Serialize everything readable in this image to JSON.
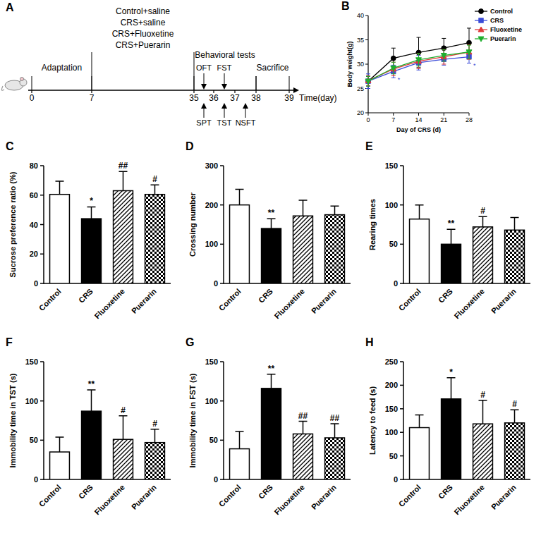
{
  "timeline": {
    "panel": "A",
    "phases": [
      {
        "lines": [
          "Adaptation"
        ],
        "from": 0,
        "to": 7
      },
      {
        "lines": [
          "Control+saline",
          "CRS+saline",
          "CRS+Fluoxetine",
          "CRS+Puerarin"
        ],
        "from": 7,
        "to": 35
      },
      {
        "lines": [
          "Behavioral tests"
        ],
        "from": 35,
        "to": 38
      },
      {
        "lines": [
          "Sacrifice"
        ],
        "from": 38,
        "to": 39
      }
    ],
    "days": [
      0,
      7,
      35,
      36,
      37,
      38,
      39
    ],
    "axis_label": "Time(day)",
    "tests": [
      {
        "label": "SPT",
        "side": "below"
      },
      {
        "label": "OFT",
        "side": "above"
      },
      {
        "label": "TST",
        "side": "below"
      },
      {
        "label": "FST",
        "side": "above"
      },
      {
        "label": "NSFT",
        "side": "below"
      }
    ]
  },
  "chart_data": [
    {
      "type": "line",
      "panel": "B",
      "xlabel": "Day of CRS (d)",
      "ylabel": "Body weight(g)",
      "x": [
        0,
        7,
        14,
        21,
        28
      ],
      "xlim": [
        0,
        28
      ],
      "xticks": [
        0,
        7,
        14,
        21,
        28
      ],
      "ylim": [
        20,
        40
      ],
      "yticks": [
        20,
        25,
        30,
        35,
        40
      ],
      "legend": "right",
      "series": [
        {
          "name": "Control",
          "color": "#000000",
          "marker": "circle",
          "values": [
            26.5,
            31.2,
            32.4,
            33.3,
            34.4
          ],
          "errors": [
            1.0,
            2.1,
            3.1,
            2.0,
            3.0
          ]
        },
        {
          "name": "CRS",
          "color": "#3b4bd8",
          "marker": "square",
          "values": [
            26.5,
            28.5,
            30.3,
            31.0,
            31.5
          ],
          "errors": [
            1.5,
            1.3,
            1.5,
            1.2,
            1.3
          ],
          "annotations": [
            null,
            "*",
            null,
            null,
            "*"
          ]
        },
        {
          "name": "Fluoxetine",
          "color": "#e03a3a",
          "marker": "triangle",
          "values": [
            26.6,
            29.0,
            30.6,
            31.5,
            32.5
          ],
          "errors": [
            1.0,
            1.4,
            1.5,
            1.5,
            1.5
          ]
        },
        {
          "name": "Puerarin",
          "color": "#1fae2e",
          "marker": "triangle-down",
          "values": [
            26.5,
            29.2,
            30.9,
            31.8,
            32.5
          ],
          "errors": [
            1.0,
            1.2,
            1.3,
            1.2,
            1.4
          ]
        }
      ]
    },
    {
      "type": "bar",
      "panel": "C",
      "ylabel": "Sucrose preference ratio (%)",
      "categories": [
        "Control",
        "CRS",
        "Fluoxetine",
        "Puerarin"
      ],
      "values": [
        60.5,
        44,
        63,
        60.5
      ],
      "errors": [
        9,
        8,
        13,
        6.5
      ],
      "annotations": [
        null,
        "*",
        "##",
        "#"
      ],
      "ylim": [
        0,
        80
      ],
      "yticks": [
        0,
        20,
        40,
        60,
        80
      ]
    },
    {
      "type": "bar",
      "panel": "D",
      "ylabel": "Crossing number",
      "categories": [
        "Control",
        "CRS",
        "Fluoxetine",
        "Puerarin"
      ],
      "values": [
        200,
        140,
        172,
        175
      ],
      "errors": [
        40,
        25,
        40,
        22
      ],
      "annotations": [
        null,
        "**",
        null,
        null
      ],
      "ylim": [
        0,
        300
      ],
      "yticks": [
        0,
        100,
        200,
        300
      ]
    },
    {
      "type": "bar",
      "panel": "E",
      "ylabel": "Rearing times",
      "categories": [
        "Control",
        "CRS",
        "Fluoxetine",
        "Puerarin"
      ],
      "values": [
        82,
        50,
        72,
        68
      ],
      "errors": [
        18,
        19,
        13,
        16
      ],
      "annotations": [
        null,
        "**",
        "#",
        null
      ],
      "ylim": [
        0,
        150
      ],
      "yticks": [
        0,
        50,
        100,
        150
      ]
    },
    {
      "type": "bar",
      "panel": "F",
      "ylabel": "Immobility time in TST (s)",
      "categories": [
        "Control",
        "CRS",
        "Fluoxetine",
        "Puerarin"
      ],
      "values": [
        35,
        87,
        51,
        47
      ],
      "errors": [
        19,
        27,
        30,
        17
      ],
      "annotations": [
        null,
        "**",
        "#",
        "#"
      ],
      "ylim": [
        0,
        150
      ],
      "yticks": [
        0,
        50,
        100,
        150
      ]
    },
    {
      "type": "bar",
      "panel": "G",
      "ylabel": "Immobility time in FST (s)",
      "categories": [
        "Control",
        "CRS",
        "Fluoxetine",
        "Puerarin"
      ],
      "values": [
        39,
        116,
        58,
        53
      ],
      "errors": [
        22,
        18,
        16,
        18
      ],
      "annotations": [
        null,
        "**",
        "##",
        "##"
      ],
      "ylim": [
        0,
        150
      ],
      "yticks": [
        0,
        50,
        100,
        150
      ]
    },
    {
      "type": "bar",
      "panel": "H",
      "ylabel": "Latency to feed (s)",
      "categories": [
        "Control",
        "CRS",
        "Fluoxetine",
        "Puerarin"
      ],
      "values": [
        110,
        171,
        118,
        120
      ],
      "errors": [
        27,
        45,
        50,
        28
      ],
      "annotations": [
        null,
        "*",
        "#",
        "#"
      ],
      "ylim": [
        0,
        250
      ],
      "yticks": [
        0,
        50,
        100,
        150,
        200,
        250
      ]
    }
  ]
}
